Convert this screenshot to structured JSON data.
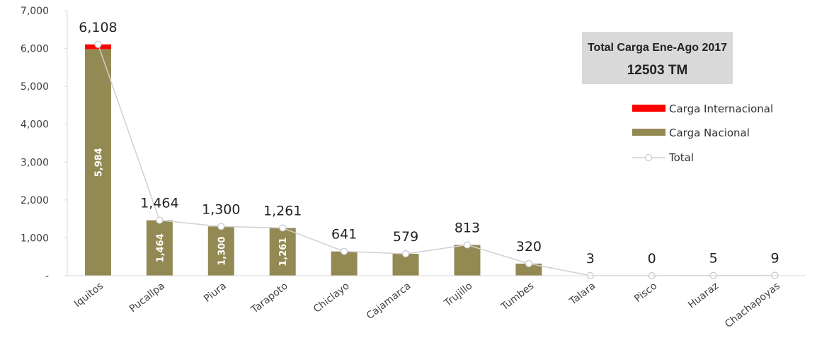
{
  "chart_data": {
    "type": "bar",
    "stacked": true,
    "categories": [
      "Iquitos",
      "Pucallpa",
      "Piura",
      "Tarapoto",
      "Chiclayo",
      "Cajamarca",
      "Trujillo",
      "Tumbes",
      "Talara",
      "Pisco",
      "Huaraz",
      "Chachapoyas"
    ],
    "series": [
      {
        "name": "Carga Internacional",
        "color": "#ff0000",
        "values": [
          124,
          0,
          0,
          0,
          0,
          0,
          0,
          0,
          0,
          0,
          0,
          0
        ]
      },
      {
        "name": "Carga Nacional",
        "color": "#938953",
        "values": [
          5984,
          1464,
          1300,
          1261,
          641,
          579,
          813,
          320,
          3,
          0,
          5,
          9
        ]
      }
    ],
    "total_series": {
      "name": "Total",
      "color": "#d0d0d0",
      "values": [
        6108,
        1464,
        1300,
        1261,
        641,
        579,
        813,
        320,
        3,
        0,
        5,
        9
      ]
    },
    "total_labels": [
      "6,108",
      "1,464",
      "1,300",
      "1,261",
      "641",
      "579",
      "813",
      "320",
      "3",
      "0",
      "5",
      "9"
    ],
    "inner_labels": [
      "5,984",
      "1,464",
      "1,300",
      "1,261",
      "",
      "",
      "",
      "",
      "",
      "",
      "",
      ""
    ],
    "ylim": [
      0,
      7000
    ],
    "yticks": [
      0,
      1000,
      2000,
      3000,
      4000,
      5000,
      6000,
      7000
    ],
    "ytick_labels": [
      "-",
      "1,000",
      "2,000",
      "3,000",
      "4,000",
      "5,000",
      "6,000",
      "7,000"
    ],
    "legend_position": "right",
    "grid": false
  },
  "summary_box": {
    "title": "Total Carga Ene-Ago 2017",
    "value": "12503 TM"
  }
}
